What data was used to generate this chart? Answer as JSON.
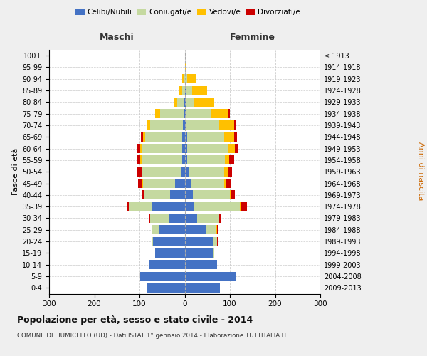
{
  "age_groups": [
    "0-4",
    "5-9",
    "10-14",
    "15-19",
    "20-24",
    "25-29",
    "30-34",
    "35-39",
    "40-44",
    "45-49",
    "50-54",
    "55-59",
    "60-64",
    "65-69",
    "70-74",
    "75-79",
    "80-84",
    "85-89",
    "90-94",
    "95-99",
    "100+"
  ],
  "birth_years": [
    "2009-2013",
    "2004-2008",
    "1999-2003",
    "1994-1998",
    "1989-1993",
    "1984-1988",
    "1979-1983",
    "1974-1978",
    "1969-1973",
    "1964-1968",
    "1959-1963",
    "1954-1958",
    "1949-1953",
    "1944-1948",
    "1939-1943",
    "1934-1938",
    "1929-1933",
    "1924-1928",
    "1919-1923",
    "1914-1918",
    "≤ 1913"
  ],
  "maschi_celibi": [
    84,
    99,
    78,
    65,
    70,
    57,
    36,
    72,
    32,
    22,
    9,
    6,
    5,
    5,
    4,
    3,
    1,
    0,
    0,
    0,
    0
  ],
  "maschi_coniugati": [
    0,
    0,
    0,
    1,
    4,
    14,
    40,
    52,
    58,
    70,
    84,
    90,
    90,
    82,
    72,
    52,
    16,
    6,
    2,
    0,
    0
  ],
  "maschi_vedovi": [
    0,
    0,
    0,
    0,
    0,
    0,
    0,
    0,
    0,
    1,
    1,
    2,
    3,
    5,
    7,
    10,
    8,
    7,
    3,
    0,
    0
  ],
  "maschi_divorziati": [
    0,
    0,
    0,
    0,
    0,
    2,
    2,
    5,
    5,
    10,
    12,
    8,
    8,
    5,
    2,
    0,
    0,
    0,
    0,
    0,
    0
  ],
  "femmine_nubili": [
    78,
    112,
    72,
    62,
    62,
    48,
    28,
    22,
    18,
    14,
    8,
    5,
    5,
    5,
    4,
    3,
    2,
    2,
    0,
    0,
    0
  ],
  "femmine_coniugate": [
    0,
    0,
    0,
    4,
    10,
    22,
    48,
    100,
    82,
    73,
    80,
    84,
    90,
    82,
    73,
    55,
    20,
    14,
    5,
    1,
    0
  ],
  "femmine_vedove": [
    0,
    0,
    0,
    0,
    0,
    2,
    0,
    2,
    2,
    4,
    7,
    9,
    16,
    23,
    32,
    38,
    43,
    33,
    20,
    3,
    0
  ],
  "femmine_divorziate": [
    0,
    0,
    0,
    0,
    2,
    2,
    4,
    14,
    9,
    10,
    10,
    12,
    8,
    5,
    5,
    4,
    0,
    0,
    0,
    0,
    0
  ],
  "colors": {
    "celibi_nubili": "#4472c4",
    "coniugati": "#c5d9a0",
    "vedovi": "#ffc000",
    "divorziati": "#cc0000"
  },
  "title": "Popolazione per età, sesso e stato civile - 2014",
  "subtitle": "COMUNE DI FIUMICELLO (UD) - Dati ISTAT 1° gennaio 2014 - Elaborazione TUTTITALIA.IT",
  "maschi_label": "Maschi",
  "femmine_label": "Femmine",
  "ylabel_left": "Fasce di età",
  "ylabel_right": "Anni di nascita",
  "legend_labels": [
    "Celibi/Nubili",
    "Coniugati/e",
    "Vedovi/e",
    "Divorziati/e"
  ],
  "xlim": 300,
  "bg_color": "#efefef",
  "plot_bg": "#ffffff",
  "grid_color": "#cccccc"
}
